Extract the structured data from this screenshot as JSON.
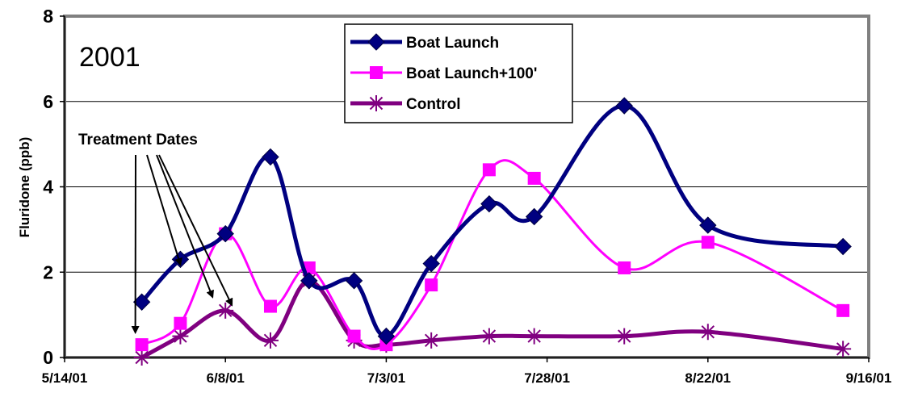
{
  "chart_data": {
    "type": "line",
    "title": "",
    "inset_label": "2001",
    "xlabel": "",
    "ylabel": "Fluridone (ppb)",
    "ylim": [
      0,
      8
    ],
    "y_ticks": [
      0,
      2,
      4,
      6,
      8
    ],
    "x_ticks": [
      "5/14/01",
      "6/8/01",
      "7/3/01",
      "7/28/01",
      "8/22/01",
      "9/16/01"
    ],
    "grid": true,
    "legend_position": "top-center",
    "annotation": {
      "text": "Treatment Dates",
      "target_dates": [
        "5/26/01",
        "6/2/01",
        "6/7/01",
        "6/10/01"
      ]
    },
    "series": [
      {
        "name": "Boat Launch",
        "color": "#000080",
        "marker": "diamond",
        "points": [
          {
            "x": "5/26/01",
            "y": 1.3
          },
          {
            "x": "6/1/01",
            "y": 2.3
          },
          {
            "x": "6/8/01",
            "y": 2.9
          },
          {
            "x": "6/15/01",
            "y": 4.7
          },
          {
            "x": "6/21/01",
            "y": 1.8
          },
          {
            "x": "6/28/01",
            "y": 1.8
          },
          {
            "x": "7/3/01",
            "y": 0.5
          },
          {
            "x": "7/10/01",
            "y": 2.2
          },
          {
            "x": "7/19/01",
            "y": 3.6
          },
          {
            "x": "7/26/01",
            "y": 3.3
          },
          {
            "x": "8/9/01",
            "y": 5.9
          },
          {
            "x": "8/22/01",
            "y": 3.1
          },
          {
            "x": "9/12/01",
            "y": 2.6
          }
        ]
      },
      {
        "name": "Boat Launch+100'",
        "color": "#ff00ff",
        "marker": "square",
        "points": [
          {
            "x": "5/26/01",
            "y": 0.3
          },
          {
            "x": "6/1/01",
            "y": 0.8
          },
          {
            "x": "6/8/01",
            "y": 2.9
          },
          {
            "x": "6/15/01",
            "y": 1.2
          },
          {
            "x": "6/21/01",
            "y": 2.1
          },
          {
            "x": "6/28/01",
            "y": 0.5
          },
          {
            "x": "7/3/01",
            "y": 0.3
          },
          {
            "x": "7/10/01",
            "y": 1.7
          },
          {
            "x": "7/19/01",
            "y": 4.4
          },
          {
            "x": "7/26/01",
            "y": 4.2
          },
          {
            "x": "8/9/01",
            "y": 2.1
          },
          {
            "x": "8/22/01",
            "y": 2.7
          },
          {
            "x": "9/12/01",
            "y": 1.1
          }
        ]
      },
      {
        "name": "Control",
        "color": "#800080",
        "marker": "asterisk",
        "points": [
          {
            "x": "5/26/01",
            "y": 0.0
          },
          {
            "x": "6/1/01",
            "y": 0.5
          },
          {
            "x": "6/8/01",
            "y": 1.1
          },
          {
            "x": "6/15/01",
            "y": 0.4
          },
          {
            "x": "6/21/01",
            "y": 1.8
          },
          {
            "x": "6/28/01",
            "y": 0.4
          },
          {
            "x": "7/3/01",
            "y": 0.3
          },
          {
            "x": "7/10/01",
            "y": 0.4
          },
          {
            "x": "7/19/01",
            "y": 0.5
          },
          {
            "x": "7/26/01",
            "y": 0.5
          },
          {
            "x": "8/9/01",
            "y": 0.5
          },
          {
            "x": "8/22/01",
            "y": 0.6
          },
          {
            "x": "9/12/01",
            "y": 0.2
          }
        ]
      }
    ]
  }
}
